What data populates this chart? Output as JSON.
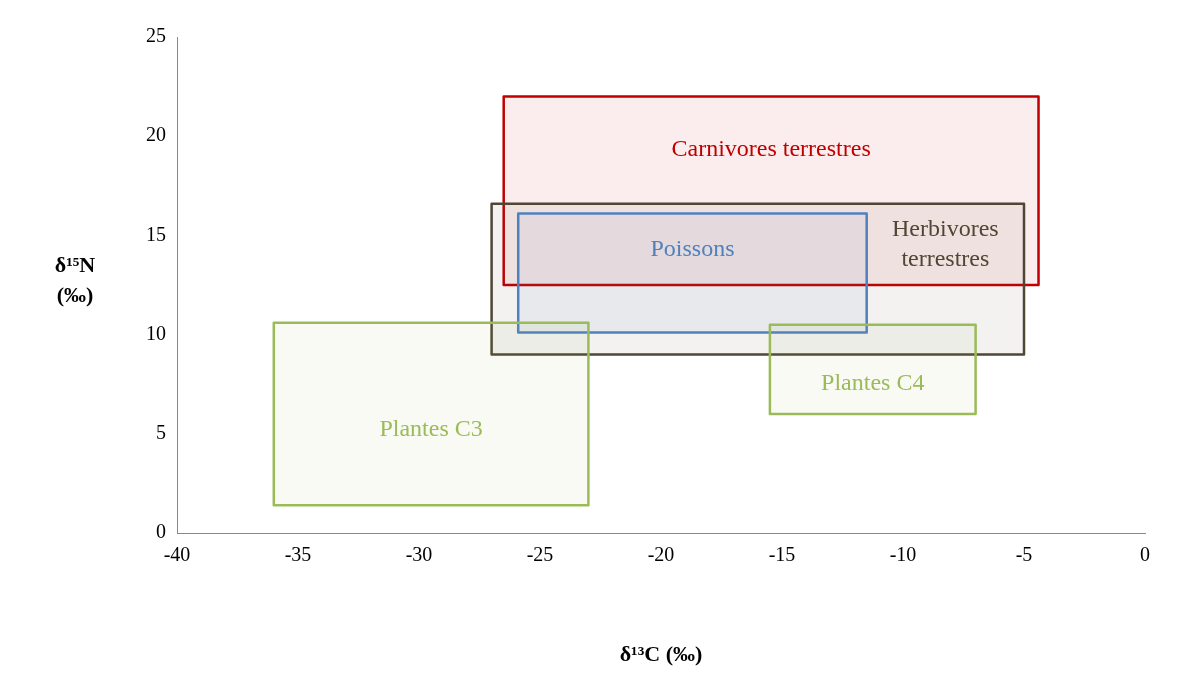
{
  "chart_data": {
    "type": "area",
    "xlabel": "δ¹³C (‰)",
    "ylabel": "δ¹⁵N (‰)",
    "xlim": [
      -40,
      0
    ],
    "xticks": [
      -40,
      -35,
      -30,
      -25,
      -20,
      -15,
      -10,
      -5,
      0
    ],
    "ylim": [
      0,
      25
    ],
    "yticks": [
      0,
      5,
      10,
      15,
      20,
      25
    ],
    "grid": false,
    "legend": false,
    "marker": "none",
    "line_style": "solid",
    "series": [
      {
        "name": "Carnivores terrestres",
        "color": "#c00000",
        "x": [
          -26.5,
          -4.4,
          -4.4,
          -26.5,
          -26.5
        ],
        "values": [
          12.5,
          12.5,
          22,
          22,
          12.5
        ]
      },
      {
        "name": "Herbivores terrestres",
        "color": "#4f4634",
        "x": [
          -27,
          -5,
          -5,
          -27,
          -27
        ],
        "values": [
          9,
          9,
          16.6,
          16.6,
          9
        ]
      },
      {
        "name": "Poissons",
        "color": "#4f81bd",
        "x": [
          -25.9,
          -11.5,
          -11.5,
          -25.9,
          -25.9
        ],
        "values": [
          10.1,
          10.1,
          16.1,
          16.1,
          10.1
        ]
      },
      {
        "name": "Plantes C3",
        "color": "#9bbb59",
        "x": [
          -36,
          -23,
          -23,
          -36,
          -36
        ],
        "values": [
          1.4,
          1.4,
          10.6,
          10.6,
          1.4
        ]
      },
      {
        "name": "Plantes C4",
        "color": "#9bbb59",
        "x": [
          -15.5,
          -7,
          -7,
          -15.5,
          -15.5
        ],
        "values": [
          6,
          6,
          10.5,
          10.5,
          6
        ]
      }
    ]
  }
}
